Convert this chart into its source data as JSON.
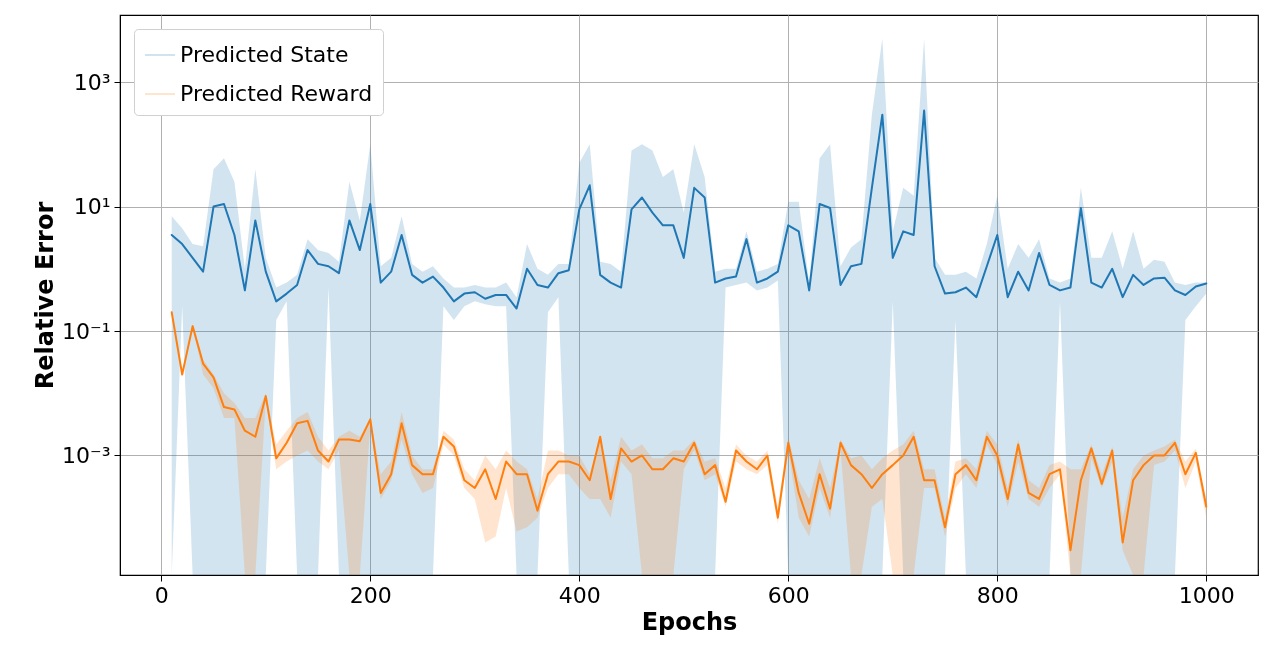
{
  "chart_data": {
    "type": "line",
    "xlabel": "Epochs",
    "ylabel": "Relative Error",
    "log": "y",
    "grid": true,
    "legend": "top left",
    "line_style": "solid",
    "xlim": [
      -39.5,
      1049.5
    ],
    "xticks": [
      0,
      200,
      400,
      600,
      800,
      1000
    ],
    "ylim": [
      1.2e-05,
      12000
    ],
    "yticks": [
      {
        "value": 0.001,
        "label": "10⁻³"
      },
      {
        "value": 0.1,
        "label": "10⁻¹"
      },
      {
        "value": 10,
        "label": "10¹"
      },
      {
        "value": 1000,
        "label": "10³"
      }
    ],
    "x": [
      10,
      20,
      30,
      40,
      50,
      60,
      70,
      80,
      90,
      100,
      110,
      120,
      130,
      140,
      150,
      160,
      170,
      180,
      190,
      200,
      210,
      220,
      230,
      240,
      250,
      260,
      270,
      280,
      290,
      300,
      310,
      320,
      330,
      340,
      350,
      360,
      370,
      380,
      390,
      400,
      410,
      420,
      430,
      440,
      450,
      460,
      470,
      480,
      490,
      500,
      510,
      520,
      530,
      540,
      550,
      560,
      570,
      580,
      590,
      600,
      610,
      620,
      630,
      640,
      650,
      660,
      670,
      680,
      690,
      700,
      710,
      720,
      730,
      740,
      750,
      760,
      770,
      780,
      790,
      800,
      810,
      820,
      830,
      840,
      850,
      860,
      870,
      880,
      890,
      900,
      910,
      920,
      930,
      940,
      950,
      960,
      970,
      980,
      990,
      1000
    ],
    "series": [
      {
        "name": "Predicted State",
        "color": "#1f77b4",
        "values": [
          3.5,
          2.5,
          1.5,
          0.9,
          10,
          11,
          3.5,
          0.45,
          6,
          0.9,
          0.3,
          0.4,
          0.55,
          2,
          1.2,
          1.1,
          0.85,
          6,
          2,
          11,
          0.6,
          0.9,
          3.5,
          0.8,
          0.6,
          0.75,
          0.5,
          0.3,
          0.4,
          0.42,
          0.33,
          0.38,
          0.38,
          0.23,
          1.0,
          0.55,
          0.5,
          0.85,
          0.95,
          9,
          22,
          0.8,
          0.6,
          0.5,
          9,
          14,
          8,
          5,
          5,
          1.5,
          20,
          14,
          0.6,
          0.7,
          0.75,
          3,
          0.6,
          0.7,
          0.9,
          5,
          4,
          0.45,
          11,
          9.5,
          0.55,
          1.1,
          1.2,
          20,
          300,
          1.5,
          4,
          3.5,
          350,
          1.1,
          0.4,
          0.42,
          0.5,
          0.35,
          1.1,
          3.5,
          0.35,
          0.9,
          0.45,
          1.8,
          0.55,
          0.45,
          0.5,
          9.5,
          0.6,
          0.5,
          1.0,
          0.35,
          0.8,
          0.55,
          0.7,
          0.72,
          0.45,
          0.38,
          0.52,
          0.58
        ],
        "upper": [
          7,
          4.5,
          2.5,
          2.3,
          40,
          60,
          25,
          1,
          40,
          1.5,
          0.5,
          0.6,
          0.8,
          3,
          2,
          1.8,
          1.3,
          25,
          6,
          100,
          1.1,
          1.5,
          7,
          1.2,
          0.9,
          1.1,
          0.7,
          0.5,
          0.5,
          0.55,
          0.5,
          0.5,
          0.6,
          0.35,
          2.5,
          1,
          0.8,
          1.2,
          1.2,
          50,
          100,
          1.3,
          1.2,
          0.9,
          80,
          100,
          80,
          30,
          40,
          8,
          100,
          30,
          0.9,
          1,
          1,
          4,
          0.9,
          1,
          1.2,
          12,
          12,
          0.6,
          60,
          100,
          1.1,
          2.2,
          3,
          300,
          5000,
          4,
          20,
          15,
          5000,
          1.5,
          0.8,
          0.8,
          0.9,
          0.7,
          2.5,
          15,
          1,
          2.5,
          1.5,
          3,
          0.7,
          0.6,
          0.7,
          20,
          1.5,
          1.5,
          4,
          1,
          4,
          1,
          1.4,
          1.3,
          0.6,
          0.55,
          0.6,
          0.6
        ],
        "lower": [
          1.2e-05,
          0.25,
          1.2e-05,
          1.2e-05,
          1.2e-05,
          1.2e-05,
          1.2e-05,
          1.2e-05,
          1.2e-05,
          1.2e-05,
          0.15,
          0.3,
          1.2e-05,
          1.2e-05,
          1.2e-05,
          0.5,
          1.2e-05,
          1.2e-05,
          1.2e-05,
          1.2e-05,
          1.2e-05,
          1.2e-05,
          1.2e-05,
          1.2e-05,
          1.2e-05,
          1.2e-05,
          0.25,
          0.15,
          0.25,
          0.3,
          0.27,
          0.25,
          0.25,
          1.2e-05,
          1.2e-05,
          1.2e-05,
          0.2,
          0.35,
          1.2e-05,
          1.2e-05,
          1.2e-05,
          1.2e-05,
          1.2e-05,
          1.2e-05,
          1.2e-05,
          1.2e-05,
          1.2e-05,
          1.2e-05,
          1.2e-05,
          1.2e-05,
          1.2e-05,
          1.2e-05,
          1.2e-05,
          0.5,
          0.55,
          0.6,
          0.45,
          0.5,
          0.65,
          1.2e-05,
          1.2e-05,
          1.2e-05,
          1.2e-05,
          1.2e-05,
          1.2e-05,
          1.2e-05,
          1.2e-05,
          1.2e-05,
          1.2e-05,
          0.3,
          1.2e-05,
          1.2e-05,
          1.2e-05,
          1.2e-05,
          1.2e-05,
          0.15,
          1.2e-05,
          1.2e-05,
          1.2e-05,
          1.2e-05,
          1.2e-05,
          1.2e-05,
          1.2e-05,
          1.2e-05,
          1.2e-05,
          0.3,
          1.2e-05,
          1.2e-05,
          1.2e-05,
          1.2e-05,
          1.2e-05,
          1.2e-05,
          1.2e-05,
          1.2e-05,
          1.2e-05,
          1.2e-05,
          1.2e-05,
          0.15,
          0.25,
          0.4
        ]
      },
      {
        "name": "Predicted Reward",
        "color": "#ff7f0e",
        "values": [
          0.2,
          0.02,
          0.12,
          0.03,
          0.018,
          0.006,
          0.0055,
          0.0025,
          0.002,
          0.009,
          0.0009,
          0.0016,
          0.0033,
          0.0036,
          0.0012,
          0.0008,
          0.0018,
          0.0018,
          0.0017,
          0.0038,
          0.00025,
          0.0005,
          0.0033,
          0.0007,
          0.0005,
          0.0005,
          0.002,
          0.0014,
          0.0004,
          0.0003,
          0.0006,
          0.0002,
          0.0008,
          0.0005,
          0.0005,
          0.00013,
          0.0005,
          0.0008,
          0.0008,
          0.0007,
          0.0004,
          0.002,
          0.0002,
          0.0013,
          0.0008,
          0.001,
          0.0006,
          0.0006,
          0.0009,
          0.0008,
          0.0016,
          0.0005,
          0.0007,
          0.00018,
          0.0012,
          0.0008,
          0.0006,
          0.001,
          0.0001,
          0.0016,
          0.00025,
          8e-05,
          0.0005,
          0.00014,
          0.0016,
          0.0007,
          0.0005,
          0.0003,
          0.0005,
          0.0007,
          0.001,
          0.002,
          0.0004,
          0.0004,
          7e-05,
          0.0005,
          0.0007,
          0.0004,
          0.002,
          0.001,
          0.0002,
          0.0015,
          0.00025,
          0.0002,
          0.0005,
          0.0006,
          3e-05,
          0.0004,
          0.0013,
          0.00035,
          0.0012,
          4e-05,
          0.0004,
          0.0007,
          0.001,
          0.001,
          0.0016,
          0.0005,
          0.0011,
          0.00015
        ],
        "upper": [
          0.2,
          0.02,
          0.12,
          0.035,
          0.02,
          0.01,
          0.007,
          0.004,
          0.004,
          0.01,
          0.0015,
          0.0025,
          0.004,
          0.005,
          0.002,
          0.0012,
          0.002,
          0.0025,
          0.002,
          0.004,
          0.0005,
          0.0008,
          0.005,
          0.001,
          0.0006,
          0.0006,
          0.0025,
          0.0018,
          0.0006,
          0.0004,
          0.001,
          0.0006,
          0.0012,
          0.0008,
          0.0006,
          0.0002,
          0.0012,
          0.0012,
          0.001,
          0.001,
          0.0005,
          0.002,
          0.0004,
          0.002,
          0.0012,
          0.0015,
          0.0009,
          0.0009,
          0.0012,
          0.0012,
          0.0018,
          0.0008,
          0.0009,
          0.0003,
          0.0015,
          0.001,
          0.0008,
          0.0012,
          0.00015,
          0.002,
          0.0004,
          0.0002,
          0.0009,
          0.0003,
          0.0018,
          0.0009,
          0.001,
          0.0006,
          0.0009,
          0.0012,
          0.0015,
          0.0025,
          0.0006,
          0.0006,
          0.0001,
          0.0008,
          0.0009,
          0.0006,
          0.0025,
          0.0015,
          0.0003,
          0.0018,
          0.0004,
          0.0003,
          0.0007,
          0.0008,
          0.0006,
          0.0006,
          0.0015,
          0.0005,
          0.0014,
          0.0001,
          0.0006,
          0.001,
          0.0012,
          0.0014,
          0.0018,
          0.0008,
          0.0013,
          0.0002
        ],
        "lower": [
          0.2,
          0.02,
          0.12,
          0.02,
          0.012,
          0.004,
          0.004,
          1.2e-05,
          1.2e-05,
          0.008,
          0.0006,
          0.0008,
          0.001,
          0.0012,
          0.0008,
          0.0006,
          0.0012,
          1.2e-05,
          1.2e-05,
          0.003,
          0.0002,
          0.0004,
          0.0018,
          0.0005,
          0.00025,
          0.0003,
          0.0015,
          0.001,
          0.0003,
          0.0002,
          4e-05,
          5e-05,
          0.0003,
          6e-05,
          7e-05,
          0.0001,
          0.0003,
          0.0005,
          0.0005,
          0.0003,
          0.0002,
          0.0002,
          0.0001,
          0.0008,
          0.0005,
          1.2e-05,
          1.2e-05,
          1.2e-05,
          1.2e-05,
          0.0006,
          0.0012,
          0.0004,
          0.0005,
          0.00015,
          0.0008,
          0.0006,
          0.0005,
          0.0007,
          8e-05,
          0.0012,
          0.0001,
          5e-05,
          0.0003,
          0.0001,
          0.0012,
          1.2e-05,
          1.2e-05,
          0.00015,
          0.0002,
          1.2e-05,
          1.2e-05,
          1.2e-05,
          0.0003,
          0.0003,
          5e-05,
          0.0003,
          0.0005,
          0.0003,
          0.0015,
          0.0007,
          0.00015,
          0.0008,
          0.0002,
          0.00015,
          0.0003,
          0.0005,
          1.2e-05,
          1.2e-05,
          0.0009,
          0.0003,
          0.0008,
          3e-05,
          1.2e-05,
          1.2e-05,
          0.0007,
          0.0008,
          0.0012,
          0.0003,
          0.0008,
          0.0001
        ]
      }
    ]
  }
}
